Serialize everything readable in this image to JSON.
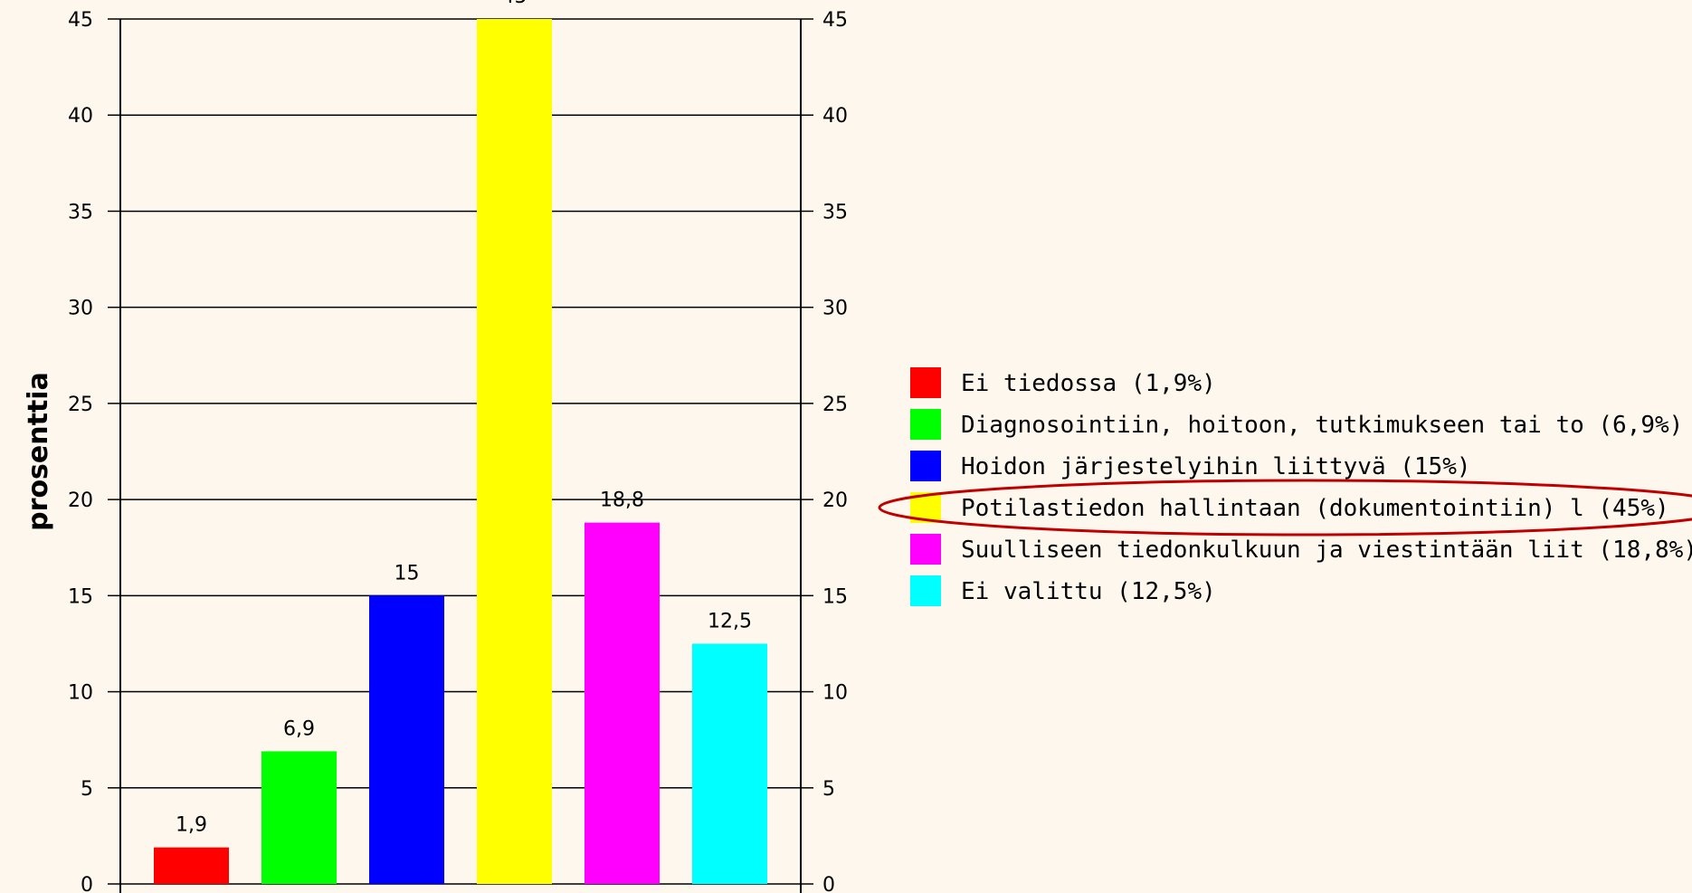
{
  "chart_data": {
    "type": "bar",
    "ylabel": "prosenttia",
    "xlabel": "",
    "title": "",
    "ylim": [
      0,
      45
    ],
    "yticks": [
      0,
      5,
      10,
      15,
      20,
      25,
      30,
      35,
      40,
      45
    ],
    "grid": true,
    "legend_position": "right",
    "categories": [
      "Ei tiedossa (1,9%)",
      "Diagnosointiin, hoitoon, tutkimukseen tai to (6,9%)",
      "Hoidon järjestelyihin liittyvä (15%)",
      "Potilastiedon hallintaan (dokumentointiin) l (45%)",
      "Suulliseen tiedonkulkuun ja viestintään liit (18,8%)",
      "Ei valittu (12,5%)"
    ],
    "values": [
      1.9,
      6.9,
      15,
      45,
      18.8,
      12.5
    ],
    "value_labels": [
      "1,9",
      "6,9",
      "15",
      "45",
      "18,8",
      "12,5"
    ],
    "colors": [
      "#ff0000",
      "#00ff00",
      "#0000ff",
      "#ffff00",
      "#ff00ff",
      "#00ffff"
    ],
    "highlighted_legend_entry": 3,
    "highlight_color": "#c00000"
  }
}
